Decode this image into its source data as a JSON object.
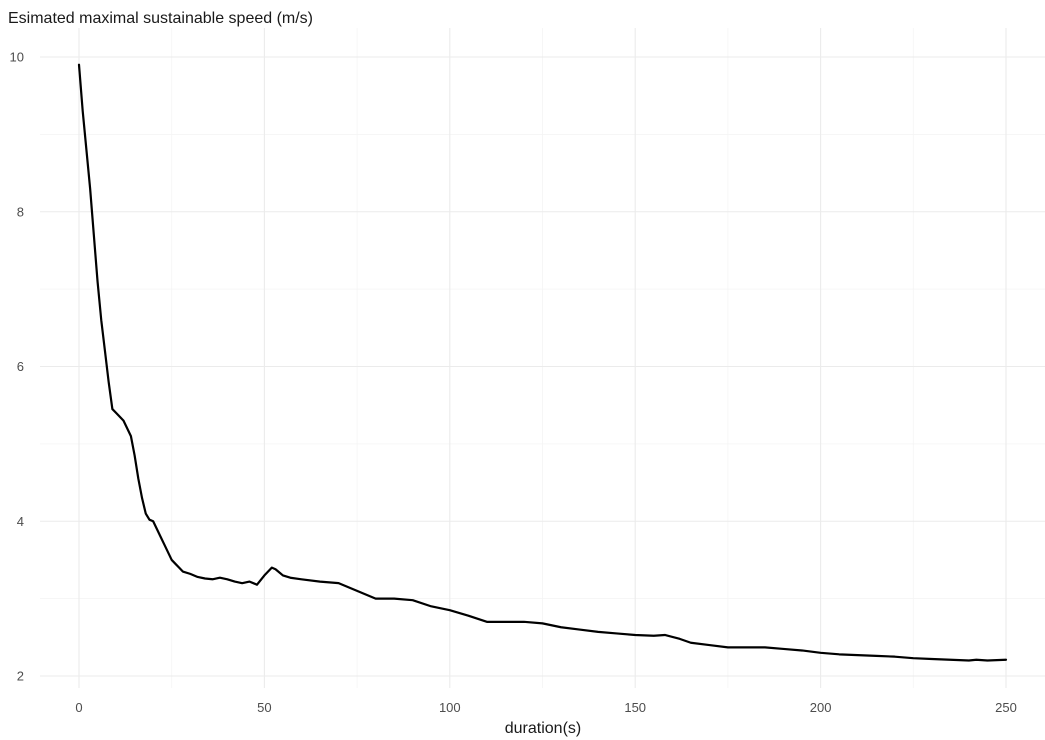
{
  "chart_data": {
    "type": "line",
    "title": "Esimated maximal sustainable speed (m/s)",
    "xlabel": "duration(s)",
    "ylabel": "",
    "xlim": [
      0,
      250
    ],
    "ylim": [
      2,
      10
    ],
    "xticks": [
      0,
      50,
      100,
      150,
      200,
      250
    ],
    "yticks": [
      2,
      4,
      6,
      8,
      10
    ],
    "grid": true,
    "legend": "none",
    "colors": {
      "line": "#000000",
      "grid": "#ebebeb",
      "background": "#ffffff"
    },
    "series": [
      {
        "x": [
          0,
          1,
          2,
          3,
          4,
          5,
          6,
          7,
          8,
          9,
          10,
          11,
          12,
          13,
          14,
          15,
          16,
          17,
          18,
          19,
          20,
          21,
          22,
          23,
          24,
          25,
          26,
          27,
          28,
          30,
          32,
          34,
          36,
          38,
          40,
          42,
          44,
          46,
          48,
          50,
          52,
          53,
          55,
          57,
          60,
          65,
          70,
          75,
          80,
          85,
          90,
          95,
          100,
          105,
          110,
          115,
          120,
          125,
          130,
          135,
          140,
          145,
          150,
          155,
          158,
          162,
          165,
          170,
          175,
          180,
          185,
          190,
          195,
          200,
          205,
          210,
          215,
          220,
          225,
          230,
          235,
          240,
          242,
          245,
          250
        ],
        "y": [
          9.9,
          9.3,
          8.8,
          8.3,
          7.7,
          7.1,
          6.6,
          6.2,
          5.8,
          5.45,
          5.4,
          5.35,
          5.3,
          5.2,
          5.1,
          4.85,
          4.55,
          4.3,
          4.1,
          4.02,
          4.0,
          3.9,
          3.8,
          3.7,
          3.6,
          3.5,
          3.45,
          3.4,
          3.35,
          3.32,
          3.28,
          3.26,
          3.25,
          3.27,
          3.25,
          3.22,
          3.2,
          3.22,
          3.18,
          3.3,
          3.4,
          3.38,
          3.3,
          3.27,
          3.25,
          3.22,
          3.2,
          3.1,
          3.0,
          3.0,
          2.98,
          2.9,
          2.85,
          2.78,
          2.7,
          2.7,
          2.7,
          2.68,
          2.63,
          2.6,
          2.57,
          2.55,
          2.53,
          2.52,
          2.53,
          2.48,
          2.43,
          2.4,
          2.37,
          2.37,
          2.37,
          2.35,
          2.33,
          2.3,
          2.28,
          2.27,
          2.26,
          2.25,
          2.23,
          2.22,
          2.21,
          2.2,
          2.21,
          2.2,
          2.21
        ]
      }
    ]
  }
}
